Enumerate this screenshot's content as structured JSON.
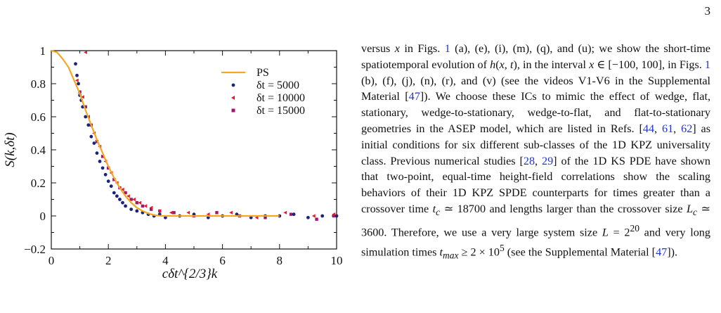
{
  "page": {
    "number": "3"
  },
  "figure": {
    "chart_data": {
      "type": "scatter",
      "xlabel": "cδt^{2/3}k",
      "ylabel": "S(k,δt)",
      "xlim": [
        0,
        10
      ],
      "ylim": [
        -0.2,
        1
      ],
      "xticks": [
        "0",
        "2",
        "4",
        "6",
        "8",
        "10"
      ],
      "yticks": [
        "−0.2",
        "0",
        "0.2",
        "0.4",
        "0.6",
        "0.8",
        "1"
      ],
      "grid": false,
      "legend_position": "top-right",
      "legend": [
        {
          "label": "PS",
          "marker": "line",
          "color": "#f5a623"
        },
        {
          "label": "δt = 5000",
          "marker": "circle",
          "color": "#1a237e"
        },
        {
          "label": "δt = 10000",
          "marker": "triangle",
          "color": "#e8192c"
        },
        {
          "label": "δt = 15000",
          "marker": "square",
          "color": "#9c1a6e"
        }
      ],
      "series": [
        {
          "name": "PS",
          "type": "line",
          "color": "#f5a623",
          "x": [
            0,
            0.2,
            0.4,
            0.6,
            0.8,
            1.0,
            1.2,
            1.4,
            1.6,
            1.8,
            2.0,
            2.2,
            2.4,
            2.6,
            2.8,
            3.0,
            3.2,
            3.4,
            3.6,
            3.8,
            4.0,
            5.0,
            6.0,
            7.0,
            8.0
          ],
          "y": [
            1.0,
            0.99,
            0.95,
            0.9,
            0.82,
            0.74,
            0.64,
            0.55,
            0.46,
            0.38,
            0.3,
            0.23,
            0.17,
            0.12,
            0.08,
            0.05,
            0.03,
            0.015,
            0.005,
            0.001,
            0.0,
            0.0,
            0.0,
            0.0,
            0.0
          ]
        },
        {
          "name": "δt = 5000",
          "type": "scatter",
          "color": "#1a237e",
          "x": [
            0.85,
            0.9,
            0.95,
            1.0,
            1.05,
            1.1,
            1.2,
            1.3,
            1.4,
            1.5,
            1.6,
            1.7,
            1.8,
            1.9,
            2.0,
            2.1,
            2.2,
            2.3,
            2.4,
            2.5,
            2.6,
            2.8,
            3.0,
            3.2,
            3.4,
            3.6,
            3.8,
            4.0,
            4.5,
            5.0,
            5.5,
            6.0,
            6.5,
            7.0,
            7.5,
            8.0,
            8.5,
            9.0,
            9.5,
            10.0
          ],
          "y": [
            0.92,
            0.85,
            0.8,
            0.73,
            0.7,
            0.66,
            0.6,
            0.55,
            0.48,
            0.44,
            0.38,
            0.33,
            0.29,
            0.25,
            0.21,
            0.18,
            0.14,
            0.12,
            0.1,
            0.08,
            0.06,
            0.04,
            0.03,
            0.02,
            0.01,
            0.0,
            0.01,
            -0.01,
            0.0,
            0.01,
            -0.01,
            0.0,
            0.01,
            -0.01,
            0.0,
            0.0,
            0.01,
            -0.01,
            0.0,
            0.0
          ]
        },
        {
          "name": "δt = 10000",
          "type": "scatter",
          "color": "#e8192c",
          "x": [
            1.2,
            0.9,
            1.1,
            1.3,
            1.5,
            1.7,
            1.9,
            2.1,
            2.3,
            2.5,
            2.7,
            2.9,
            3.1,
            3.3,
            3.5,
            3.8,
            4.2,
            4.8,
            5.5,
            6.3,
            7.2,
            8.2,
            9.2,
            9.9
          ],
          "y": [
            0.99,
            0.82,
            0.72,
            0.6,
            0.5,
            0.42,
            0.33,
            0.26,
            0.2,
            0.16,
            0.12,
            0.1,
            0.08,
            0.06,
            0.05,
            0.03,
            0.02,
            0.02,
            0.01,
            0.02,
            -0.01,
            0.02,
            0.0,
            0.01
          ]
        },
        {
          "name": "δt = 15000",
          "type": "scatter",
          "color": "#9c1a6e",
          "x": [
            1.0,
            1.2,
            1.4,
            1.6,
            1.8,
            2.0,
            2.2,
            2.4,
            2.6,
            2.8,
            3.0,
            3.2,
            3.5,
            3.8,
            4.3,
            5.0,
            5.8,
            6.6,
            7.5,
            8.4,
            9.3,
            9.9
          ],
          "y": [
            0.75,
            0.66,
            0.55,
            0.45,
            0.36,
            0.29,
            0.22,
            0.17,
            0.14,
            0.1,
            0.08,
            0.06,
            0.04,
            0.03,
            0.02,
            0.0,
            0.02,
            0.0,
            -0.01,
            0.01,
            -0.02,
            0.0
          ]
        }
      ]
    }
  },
  "text": {
    "t1": "versus ",
    "t2": "x",
    "t3": " in Figs. ",
    "r1": "1",
    "t4": " (a), (e), (i), (m), (q), and (u); we show the short-time spatiotemporal evolution of ",
    "t5": "h",
    "t6": "(",
    "t7": "x",
    "t8": ", ",
    "t9": "t",
    "t10": "), in the interval ",
    "t11": "x",
    "t12": " ∈ [−100, 100], in Figs. ",
    "r2": "1",
    "t13": " (b), (f), (j), (n), (r), and (v) (see the videos V1-V6 in the Supplemental Material [",
    "r3": "47",
    "t14": "]). We choose these ICs to mimic the effect of wedge, flat, stationary, wedge-to-stationary, wedge-to-flat, and flat-to-stationary geometries in the ASEP model, which are listed in Refs. [",
    "r4": "44",
    "t15": ", ",
    "r5": "61",
    "t16": ", ",
    "r6": "62",
    "t17": "] as initial conditions for six different sub-classes of the 1D KPZ universality class. Previous numerical studies [",
    "r7": "28",
    "t18": ", ",
    "r8": "29",
    "t19": "] of the 1D KS PDE have shown that two-point, equal-time height-field correlations show the scaling behaviors of their 1D KPZ SPDE counterparts for times greater than a crossover time ",
    "t20": "t",
    "t21": "c",
    "t22": " ≃ 18700 and lengths larger than the crossover size ",
    "t23": "L",
    "t24": "c",
    "t25": " ≃ 3600. Therefore, we use a very large system size ",
    "t26": "L",
    "t27": " = 2",
    "t28": "20",
    "t29": " and very long simulation times ",
    "t30": "t",
    "t31": "max",
    "t32": " ≥ 2 × 10",
    "t33": "5",
    "t34": " (see the Supplemental Material [",
    "r9": "47",
    "t35": "])."
  }
}
